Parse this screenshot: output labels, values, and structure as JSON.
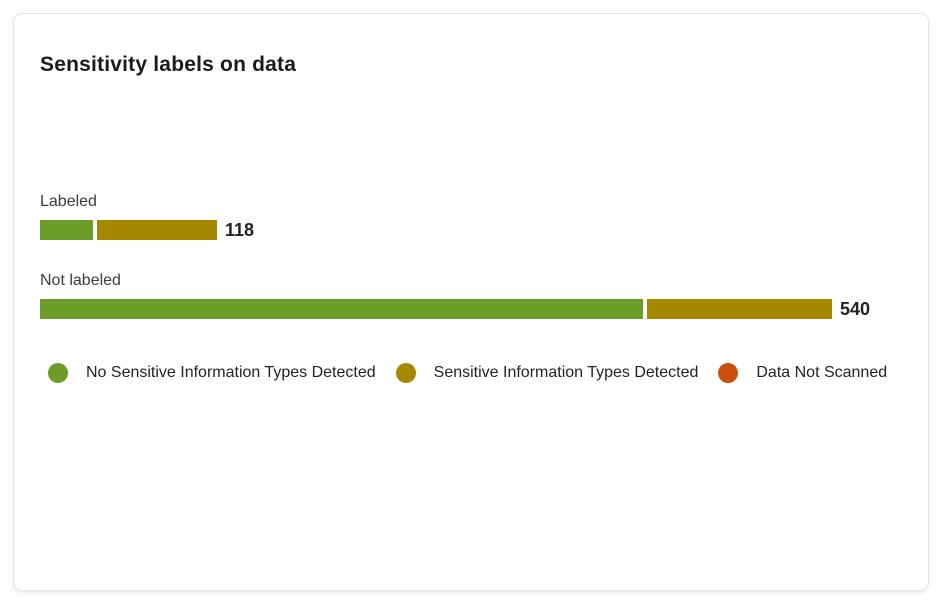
{
  "card": {
    "title": "Sensitivity labels on data"
  },
  "chart_data": {
    "type": "bar",
    "orientation": "horizontal",
    "stacked": true,
    "title": "Sensitivity labels on data",
    "categories": [
      "Labeled",
      "Not labeled"
    ],
    "totals": [
      118,
      540
    ],
    "series": [
      {
        "name": "No Sensitive Information Types Detected",
        "color": "#6b9d28",
        "values": [
          36,
          413
        ]
      },
      {
        "name": "Sensitive Information Types Detected",
        "color": "#a68800",
        "values": [
          82,
          127
        ]
      },
      {
        "name": "Data Not Scanned",
        "color": "#ca5010",
        "values": [
          0,
          0
        ]
      }
    ],
    "grid": false,
    "axes_shown": false,
    "legend_position": "bottom-left"
  }
}
